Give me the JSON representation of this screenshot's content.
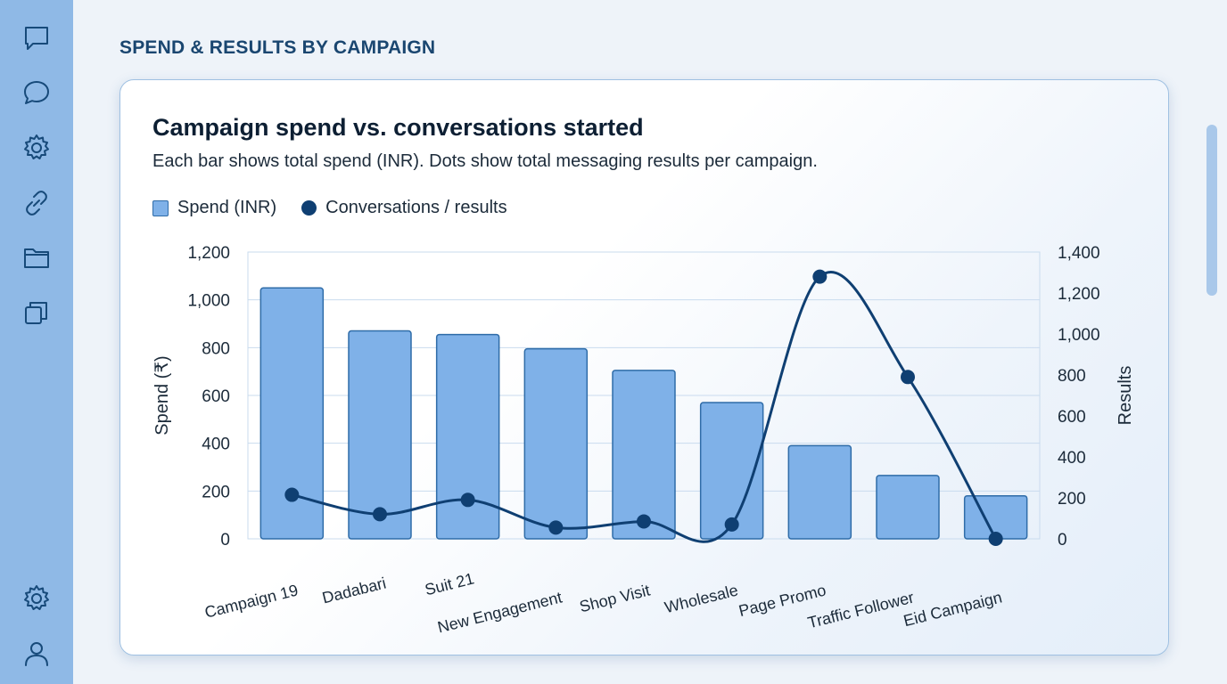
{
  "sidebar": {
    "items": [
      {
        "icon": "chat-square-icon"
      },
      {
        "icon": "chat-bubble-icon"
      },
      {
        "icon": "gear-icon"
      },
      {
        "icon": "link-icon"
      },
      {
        "icon": "folder-icon"
      },
      {
        "icon": "copy-icon"
      }
    ],
    "bottom_items": [
      {
        "icon": "gear-icon"
      },
      {
        "icon": "user-icon"
      }
    ]
  },
  "page": {
    "heading": "SPEND & RESULTS BY CAMPAIGN"
  },
  "card": {
    "title": "Campaign spend vs. conversations started",
    "subtitle": "Each bar shows total spend (INR). Dots show total messaging results per campaign."
  },
  "colors": {
    "bar_fill": "#7fb1e8",
    "bar_stroke": "#2f6ca8",
    "line": "#0f3f72",
    "sidebar": "#8fb9e6",
    "heading": "#1a4670"
  },
  "chart_data": {
    "type": "bar",
    "title": "Campaign spend vs. conversations started",
    "subtitle": "Each bar shows total spend (INR). Dots show total messaging results per campaign.",
    "categories": [
      "Campaign 19",
      "Dadabari",
      "Suit 21",
      "New Engagement",
      "Shop Visit",
      "Wholesale",
      "Page Promo",
      "Traffic Follower",
      "Eid Campaign"
    ],
    "series": [
      {
        "name": "Spend (INR)",
        "type": "bar",
        "axis": "left",
        "values": [
          1050,
          870,
          855,
          795,
          705,
          570,
          390,
          265,
          180
        ]
      },
      {
        "name": "Conversations / results",
        "type": "line",
        "axis": "right",
        "values": [
          215,
          120,
          190,
          55,
          85,
          70,
          1280,
          790,
          0
        ]
      }
    ],
    "ylabel": "Spend (₹)",
    "y2label": "Results",
    "ylim": [
      0,
      1200
    ],
    "y2lim": [
      0,
      1400
    ],
    "yticks": [
      "0",
      "200",
      "400",
      "600",
      "800",
      "1,000",
      "1,200"
    ],
    "y2ticks": [
      "0",
      "200",
      "400",
      "600",
      "800",
      "1,000",
      "1,200",
      "1,400"
    ],
    "grid": true,
    "legend": "top-left"
  }
}
